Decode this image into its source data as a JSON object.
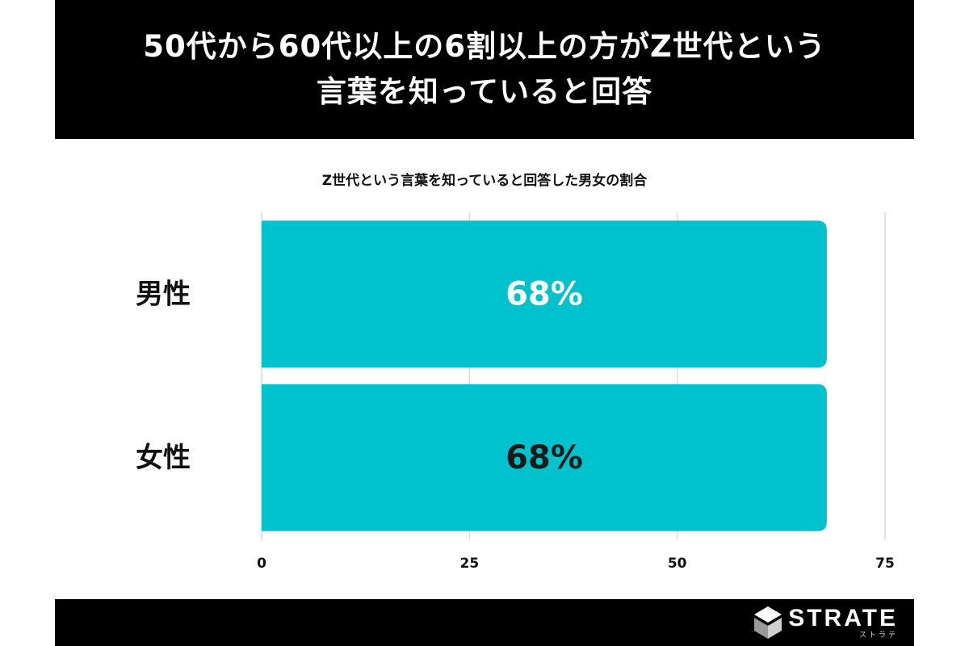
{
  "header": {
    "title_line1": "50代から60代以上の6割以上の方がZ世代という",
    "title_line2": "言葉を知っていると回答"
  },
  "chart_data": {
    "type": "bar",
    "orientation": "horizontal",
    "title": "Z世代という言葉を知っていると回答した男女の割合",
    "categories": [
      "男性",
      "女性"
    ],
    "values": [
      68,
      68
    ],
    "value_labels": [
      "68%",
      "68%"
    ],
    "xlim": [
      0,
      75
    ],
    "xticks": [
      "0",
      "25",
      "50",
      "75"
    ],
    "xlabel": "",
    "ylabel": "",
    "grid": true,
    "bar_color": "#00c2cc",
    "value_label_colors": [
      "#ffffff",
      "#1a1a1a"
    ]
  },
  "footer": {
    "brand_name": "STRATE",
    "brand_kana": "ストラテ",
    "logo_icon": "strate-logo-icon"
  }
}
